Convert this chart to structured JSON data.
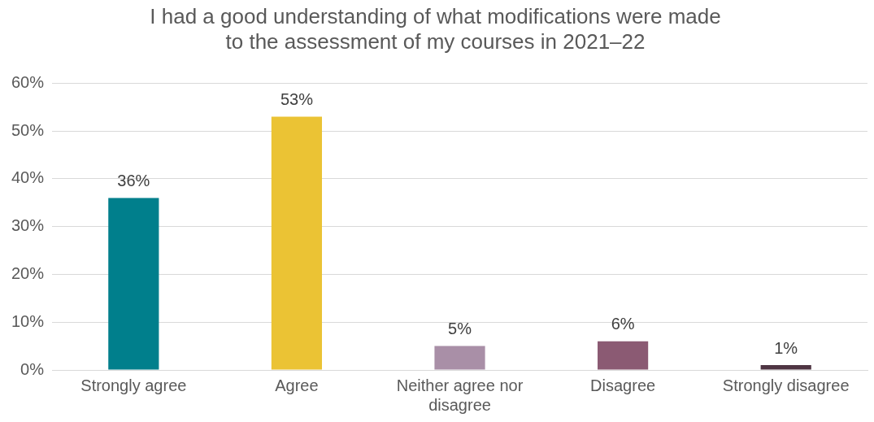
{
  "chart_data": {
    "type": "bar",
    "title": "I had a good understanding of what modifications were made to the assessment of my courses in 2021–22",
    "categories": [
      "Strongly agree",
      "Agree",
      "Neither agree nor disagree",
      "Disagree",
      "Strongly disagree"
    ],
    "values": [
      36,
      53,
      5,
      6,
      1
    ],
    "colors": [
      "#007f8c",
      "#ebc334",
      "#a98fa7",
      "#8b5a73",
      "#4f3543"
    ],
    "value_labels": [
      "36%",
      "53%",
      "5%",
      "6%",
      "1%"
    ],
    "ylim": [
      0,
      60
    ],
    "yticks": [
      {
        "value": 0,
        "label": "0%"
      },
      {
        "value": 10,
        "label": "10%"
      },
      {
        "value": 20,
        "label": "20%"
      },
      {
        "value": 30,
        "label": "30%"
      },
      {
        "value": 40,
        "label": "40%"
      },
      {
        "value": 50,
        "label": "50%"
      },
      {
        "value": 60,
        "label": "60%"
      }
    ],
    "grid": "y",
    "legend": false
  }
}
